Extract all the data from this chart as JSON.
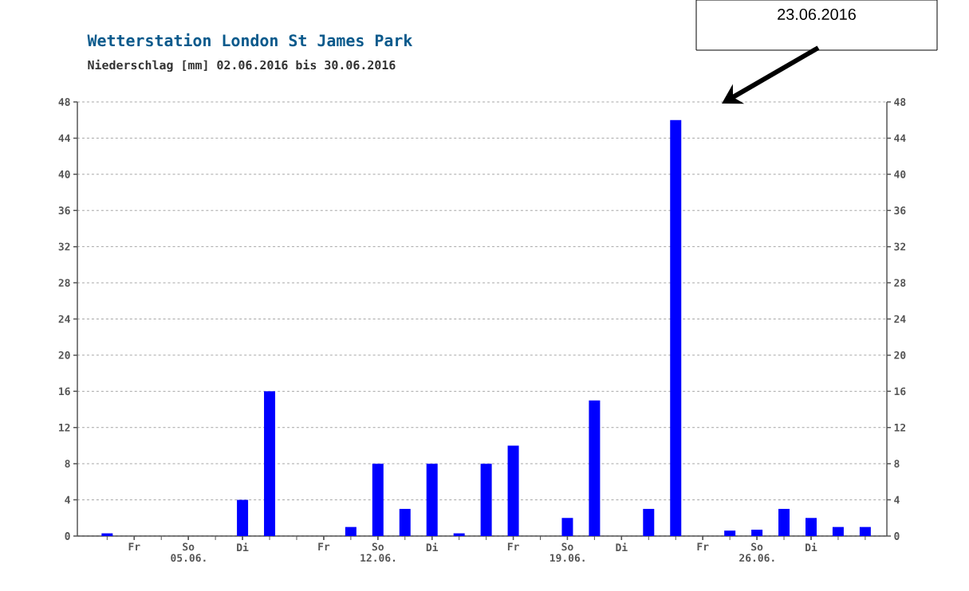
{
  "chart_data": {
    "type": "bar",
    "title": "Wetterstation London St James Park",
    "subtitle": "Niederschlag [mm] 02.06.2016 bis 30.06.2016",
    "categories": [
      null,
      "Fr",
      null,
      "So 05.06.",
      null,
      "Di",
      null,
      null,
      "Fr",
      null,
      "So 12.06.",
      null,
      "Di",
      null,
      null,
      "Fr",
      null,
      "So 19.06.",
      null,
      "Di",
      null,
      null,
      "Fr",
      null,
      "So 26.06.",
      null,
      "Di",
      null,
      null
    ],
    "values": [
      0.3,
      0,
      0,
      0,
      0,
      4,
      16,
      0,
      0,
      1,
      8,
      3,
      8,
      0.3,
      8,
      10,
      0,
      2,
      15,
      0,
      3,
      46,
      0,
      0.6,
      0.7,
      3,
      2,
      1,
      1
    ],
    "color": "#0000ff",
    "ylim": [
      0,
      48
    ],
    "yticks": [
      0,
      4,
      8,
      12,
      16,
      20,
      24,
      28,
      32,
      36,
      40,
      44,
      48
    ],
    "y2lim": [
      0,
      48
    ],
    "y2ticks": [
      0,
      4,
      8,
      12,
      16,
      20,
      24,
      28,
      32,
      36,
      40,
      44,
      48
    ],
    "grid": "y",
    "annotations": [
      "23.06.2016"
    ]
  }
}
